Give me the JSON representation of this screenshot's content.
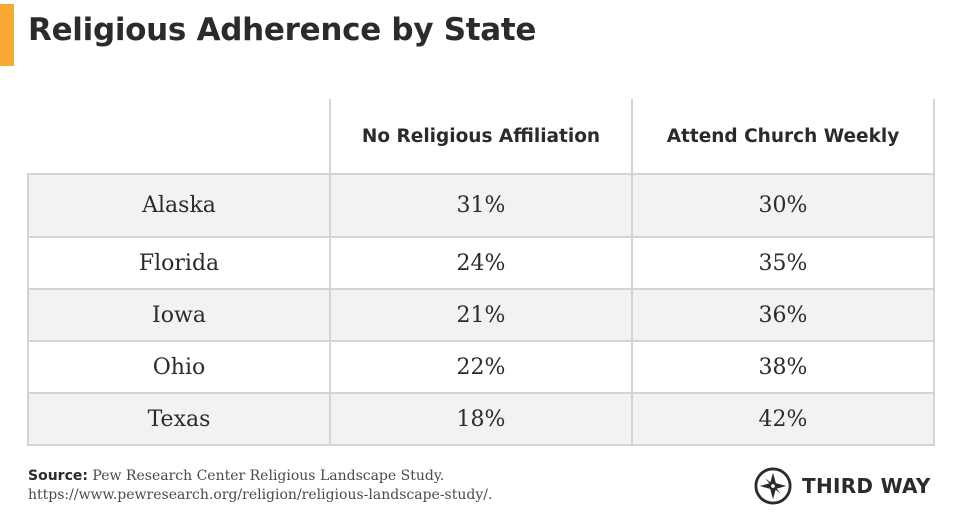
{
  "title": "Religious Adherence by State",
  "chart_data": {
    "type": "table",
    "title": "Religious Adherence by State",
    "columns": [
      "",
      "No Religious Affiliation",
      "Attend Church Weekly"
    ],
    "rows": [
      {
        "state": "Alaska",
        "no_affiliation": "31%",
        "attend_weekly": "30%"
      },
      {
        "state": "Florida",
        "no_affiliation": "24%",
        "attend_weekly": "35%"
      },
      {
        "state": "Iowa",
        "no_affiliation": "21%",
        "attend_weekly": "36%"
      },
      {
        "state": "Ohio",
        "no_affiliation": "22%",
        "attend_weekly": "38%"
      },
      {
        "state": "Texas",
        "no_affiliation": "18%",
        "attend_weekly": "42%"
      }
    ]
  },
  "source": {
    "label": "Source:",
    "text": "Pew Research Center Religious Landscape Study. https://www.pewresearch.org/religion/religious-landscape-study/."
  },
  "logo": {
    "name": "THIRD WAY"
  },
  "colors": {
    "accent": "#f7a933",
    "row_shade": "#f2f2f2",
    "grid": "#d4d4d4",
    "text": "#2b2b2b"
  }
}
